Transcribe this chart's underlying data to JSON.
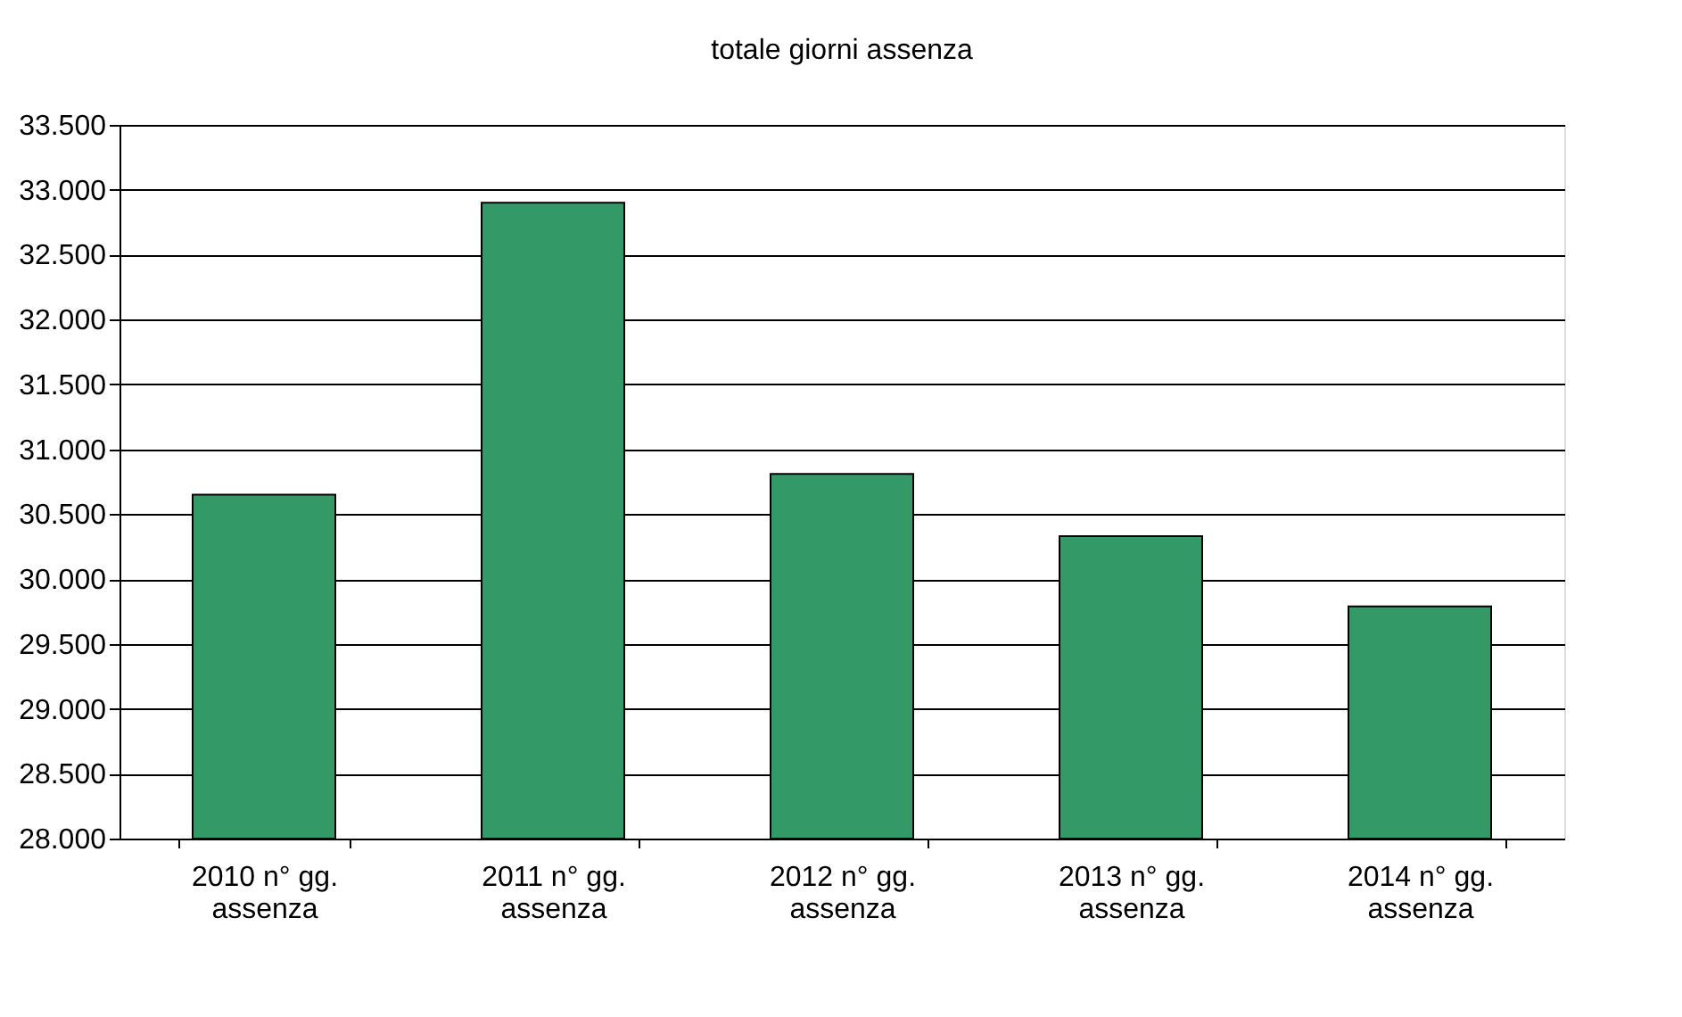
{
  "chart_data": {
    "type": "bar",
    "title": "totale giorni assenza",
    "categories": [
      "2010 n° gg. assenza",
      "2011 n° gg. assenza",
      "2012 n° gg. assenza",
      "2013 n° gg. assenza",
      "2014 n° gg. assenza"
    ],
    "values": [
      30650,
      32900,
      30810,
      30330,
      29790
    ],
    "color": "#339966",
    "ylim": [
      28000,
      33500
    ],
    "yticks": [
      {
        "value": 28000,
        "label": "28.000"
      },
      {
        "value": 28500,
        "label": "28.500"
      },
      {
        "value": 29000,
        "label": "29.000"
      },
      {
        "value": 29500,
        "label": "29.500"
      },
      {
        "value": 30000,
        "label": "30.000"
      },
      {
        "value": 30500,
        "label": "30.500"
      },
      {
        "value": 31000,
        "label": "31.000"
      },
      {
        "value": 31500,
        "label": "31.500"
      },
      {
        "value": 32000,
        "label": "32.000"
      },
      {
        "value": 32500,
        "label": "32.500"
      },
      {
        "value": 33000,
        "label": "33.000"
      },
      {
        "value": 33500,
        "label": "33.500"
      }
    ],
    "grid": "y"
  }
}
